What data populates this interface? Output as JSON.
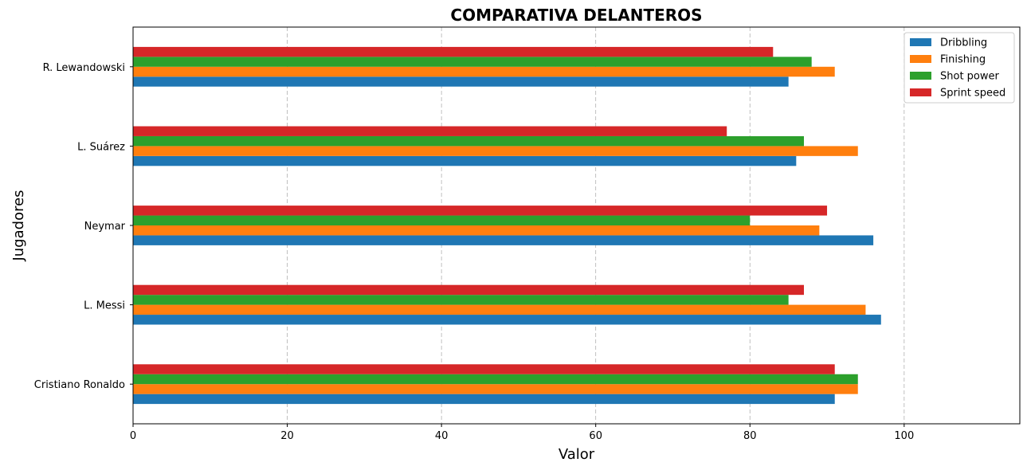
{
  "chart_data": {
    "type": "bar",
    "orientation": "horizontal",
    "title": "COMPARATIVA DELANTEROS",
    "xlabel": "Valor",
    "ylabel": "Jugadores",
    "xlim": [
      0,
      115
    ],
    "xticks": [
      0,
      20,
      40,
      60,
      80,
      100
    ],
    "grid": "x-dashed",
    "legend_position": "top-right",
    "categories": [
      "Cristiano Ronaldo",
      "L. Messi",
      "Neymar",
      "L. Suárez",
      "R. Lewandowski"
    ],
    "series": [
      {
        "name": "Dribbling",
        "color": "#1f77b4",
        "values": [
          91,
          97,
          96,
          86,
          85
        ]
      },
      {
        "name": "Finishing",
        "color": "#ff7f0e",
        "values": [
          94,
          95,
          89,
          94,
          91
        ]
      },
      {
        "name": "Shot power",
        "color": "#2ca02c",
        "values": [
          94,
          85,
          80,
          87,
          88
        ]
      },
      {
        "name": "Sprint speed",
        "color": "#d62728",
        "values": [
          91,
          87,
          90,
          77,
          83
        ]
      }
    ]
  }
}
